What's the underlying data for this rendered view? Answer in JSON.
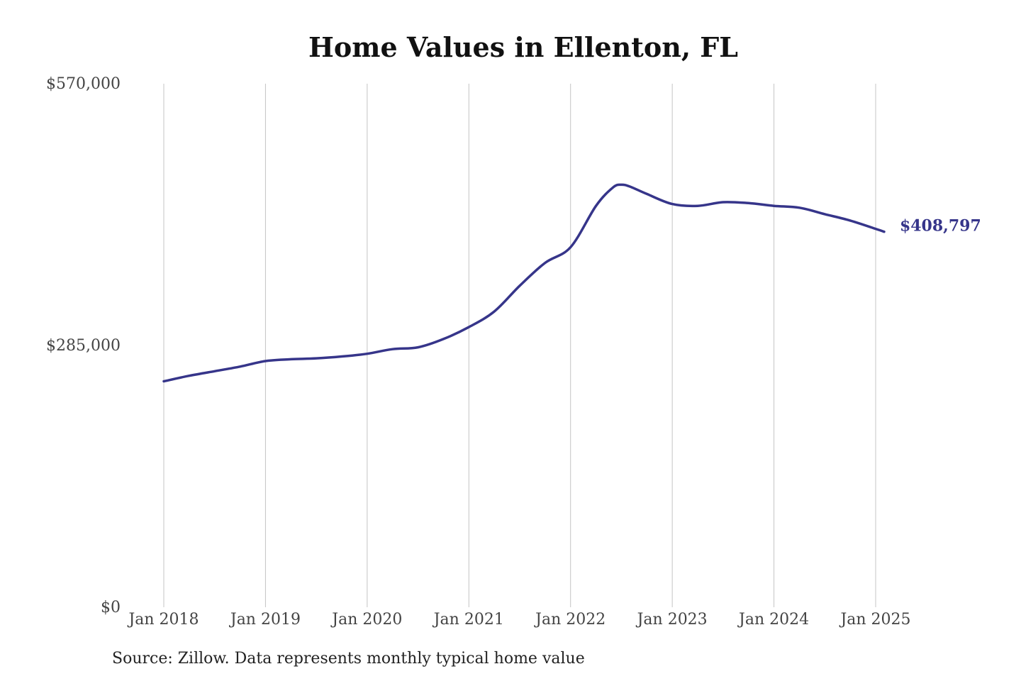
{
  "chart_data": {
    "type": "line",
    "title": "Home Values in Ellenton, FL",
    "source": "Source: Zillow. Data represents monthly typical home value",
    "xlabel": "",
    "ylabel": "",
    "ylim": [
      0,
      570000
    ],
    "y_ticks": [
      {
        "value": 0,
        "label": "$0"
      },
      {
        "value": 285000,
        "label": "$285,000"
      },
      {
        "value": 570000,
        "label": "$570,000"
      }
    ],
    "x_ticks": [
      {
        "date": "2018-01",
        "label": "Jan 2018"
      },
      {
        "date": "2019-01",
        "label": "Jan 2019"
      },
      {
        "date": "2020-01",
        "label": "Jan 2020"
      },
      {
        "date": "2021-01",
        "label": "Jan 2021"
      },
      {
        "date": "2022-01",
        "label": "Jan 2022"
      },
      {
        "date": "2023-01",
        "label": "Jan 2023"
      },
      {
        "date": "2024-01",
        "label": "Jan 2024"
      },
      {
        "date": "2025-01",
        "label": "Jan 2025"
      }
    ],
    "grid": "vertical",
    "series_color": "#36358a",
    "end_label": "$408,797",
    "series": [
      {
        "x": [
          "2018-01",
          "2018-04",
          "2018-07",
          "2018-10",
          "2019-01",
          "2019-04",
          "2019-07",
          "2019-10",
          "2020-01",
          "2020-04",
          "2020-07",
          "2020-10",
          "2021-01",
          "2021-04",
          "2021-07",
          "2021-10",
          "2022-01",
          "2022-04",
          "2022-06",
          "2022-07",
          "2022-08",
          "2022-10",
          "2023-01",
          "2023-04",
          "2023-07",
          "2023-10",
          "2024-01",
          "2024-04",
          "2024-07",
          "2024-10",
          "2025-01",
          "2025-02"
        ],
        "y": [
          246000,
          252000,
          257000,
          262000,
          268000,
          270000,
          271000,
          273000,
          276000,
          281000,
          283000,
          292000,
          305000,
          322000,
          350000,
          375000,
          392000,
          437000,
          457000,
          460000,
          458000,
          450000,
          439000,
          437000,
          441000,
          440000,
          437000,
          435000,
          428000,
          421000,
          412000,
          408797
        ]
      }
    ]
  }
}
